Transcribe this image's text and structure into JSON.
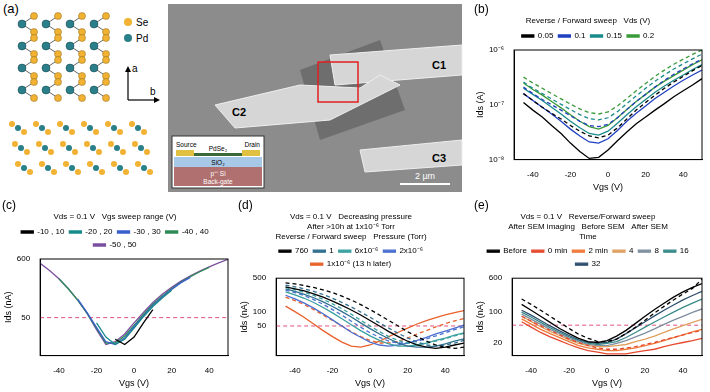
{
  "panel_a": {
    "label": "(a)",
    "atoms": [
      "Se",
      "Pd"
    ],
    "axes": [
      "a",
      "b"
    ],
    "electrodes": [
      "C1",
      "C2",
      "C3"
    ],
    "scale_bar": "2 μm",
    "inset": {
      "source": "Source",
      "drain": "Drain",
      "flake": "PdSe₂",
      "oxide": "SiO₂",
      "substrate": "p⁺⁺ Si",
      "gate": "Back-gate"
    }
  },
  "chart_data": [
    {
      "type": "line",
      "title": "(b)",
      "xlabel": "Vgs (V)",
      "ylabel": "Ids (A)",
      "log": "y",
      "grid": false,
      "legend": "top",
      "annotations": [
        "Reverse / Forward sweep",
        "Vds (V)"
      ],
      "xlim": [
        -50,
        50
      ],
      "xticks": [
        -40,
        -20,
        0,
        20,
        40
      ],
      "ylim": [
        1e-08,
        1e-06
      ],
      "yticks": [
        {
          "value": 1e-08,
          "label": "10⁻⁸"
        },
        {
          "value": 1e-07,
          "label": "10⁻⁷"
        },
        {
          "value": 1e-06,
          "label": "10⁻⁶"
        }
      ],
      "x": [
        -45,
        -40,
        -35,
        -30,
        -25,
        -20,
        -15,
        -10,
        -5,
        0,
        5,
        10,
        15,
        20,
        25,
        30,
        35,
        40,
        45,
        50
      ],
      "series": [
        {
          "name": "0.05",
          "color": "#000000",
          "line_style": "solid",
          "values": [
            1.1e-07,
            8e-08,
            6e-08,
            4.2e-08,
            3e-08,
            2e-08,
            1.4e-08,
            1.05e-08,
            1.1e-08,
            1.5e-08,
            2.2e-08,
            3.2e-08,
            4.5e-08,
            6e-08,
            8e-08,
            1.05e-07,
            1.4e-07,
            1.8e-07,
            2.3e-07,
            3e-07
          ]
        },
        {
          "name": "0.05",
          "color": "#000000",
          "line_style": "dashed",
          "values": [
            1.6e-07,
            1.2e-07,
            9e-08,
            7e-08,
            5.5e-08,
            4.2e-08,
            3.3e-08,
            2.7e-08,
            2.5e-08,
            2.8e-08,
            3.8e-08,
            5.5e-08,
            8e-08,
            1.1e-07,
            1.5e-07,
            2e-07,
            2.6e-07,
            3.3e-07,
            4.2e-07,
            5.2e-07
          ]
        },
        {
          "name": "0.1",
          "color": "#2040c0",
          "line_style": "solid",
          "values": [
            1.6e-07,
            1.2e-07,
            9e-08,
            6.8e-08,
            5e-08,
            3.6e-08,
            2.7e-08,
            2.1e-08,
            2e-08,
            2.4e-08,
            3.4e-08,
            5e-08,
            7e-08,
            9.5e-08,
            1.3e-07,
            1.7e-07,
            2.2e-07,
            2.8e-07,
            3.5e-07,
            4.3e-07
          ]
        },
        {
          "name": "0.1",
          "color": "#2040c0",
          "line_style": "dashed",
          "values": [
            2.1e-07,
            1.6e-07,
            1.25e-07,
            1e-07,
            8e-08,
            6.3e-08,
            5e-08,
            4.2e-08,
            4e-08,
            4.4e-08,
            5.8e-08,
            8.2e-08,
            1.15e-07,
            1.55e-07,
            2.1e-07,
            2.8e-07,
            3.6e-07,
            4.5e-07,
            5.6e-07,
            6.8e-07
          ]
        },
        {
          "name": "0.15",
          "color": "#1a8a8a",
          "line_style": "solid",
          "values": [
            2e-07,
            1.55e-07,
            1.2e-07,
            9e-08,
            6.8e-08,
            5e-08,
            3.8e-08,
            3e-08,
            2.8e-08,
            3.3e-08,
            4.6e-08,
            6.6e-08,
            9.2e-08,
            1.25e-07,
            1.7e-07,
            2.2e-07,
            2.8e-07,
            3.5e-07,
            4.4e-07,
            5.4e-07
          ]
        },
        {
          "name": "0.15",
          "color": "#1a8a8a",
          "line_style": "dashed",
          "values": [
            2.6e-07,
            2e-07,
            1.6e-07,
            1.28e-07,
            1.02e-07,
            8.2e-08,
            6.6e-08,
            5.6e-08,
            5.3e-08,
            5.8e-08,
            7.5e-08,
            1.05e-07,
            1.45e-07,
            2e-07,
            2.7e-07,
            3.5e-07,
            4.5e-07,
            5.6e-07,
            6.9e-07,
            8.4e-07
          ]
        },
        {
          "name": "0.2",
          "color": "#3a9a3a",
          "line_style": "solid",
          "values": [
            2.5e-07,
            1.9e-07,
            1.5e-07,
            1.15e-07,
            8.8e-08,
            6.6e-08,
            5e-08,
            4e-08,
            3.6e-08,
            4.2e-08,
            5.8e-08,
            8.2e-08,
            1.15e-07,
            1.55e-07,
            2.1e-07,
            2.7e-07,
            3.4e-07,
            4.3e-07,
            5.4e-07,
            6.6e-07
          ]
        },
        {
          "name": "0.2",
          "color": "#3a9a3a",
          "line_style": "dashed",
          "values": [
            3.2e-07,
            2.5e-07,
            2e-07,
            1.6e-07,
            1.28e-07,
            1.03e-07,
            8.4e-08,
            7.2e-08,
            6.8e-08,
            7.4e-08,
            9.5e-08,
            1.3e-07,
            1.8e-07,
            2.45e-07,
            3.3e-07,
            4.3e-07,
            5.5e-07,
            6.8e-07,
            8.3e-07,
            1e-06
          ]
        }
      ]
    },
    {
      "type": "line",
      "title": "(c)",
      "xlabel": "Vgs (V)",
      "ylabel": "Ids (nA)",
      "log": "y",
      "grid": false,
      "legend": "top",
      "annotations": [
        "Vds = 0.1 V",
        "Vgs sweep range (V)"
      ],
      "xlim": [
        -50,
        50
      ],
      "xticks": [
        -40,
        -20,
        0,
        20,
        40
      ],
      "ylim": [
        10,
        600
      ],
      "yticks": [
        50,
        600
      ],
      "hline": 50,
      "x": [
        -50,
        -45,
        -40,
        -35,
        -30,
        -25,
        -20,
        -15,
        -10,
        -5,
        0,
        5,
        10,
        15,
        20,
        25,
        30,
        35,
        40,
        45,
        50
      ],
      "series": [
        {
          "name": "-10 , 10",
          "color": "#000000",
          "line_style": "solid",
          "values": [
            null,
            null,
            null,
            null,
            null,
            null,
            null,
            null,
            20,
            16,
            22,
            40,
            70,
            null,
            null,
            null,
            null,
            null,
            null,
            null,
            null
          ]
        },
        {
          "name": "-20 , 20",
          "color": "#1a8a8a",
          "line_style": "solid",
          "values": [
            null,
            null,
            null,
            null,
            null,
            null,
            40,
            22,
            16,
            20,
            32,
            52,
            80,
            115,
            160,
            null,
            null,
            null,
            null,
            null,
            null
          ]
        },
        {
          "name": "-30 , 30",
          "color": "#3a5fcd",
          "line_style": "solid",
          "values": [
            null,
            null,
            null,
            null,
            110,
            62,
            33,
            18,
            16,
            21,
            34,
            54,
            84,
            120,
            165,
            220,
            275,
            null,
            null,
            null,
            null
          ]
        },
        {
          "name": "-40 , 40",
          "color": "#2e8b57",
          "line_style": "solid",
          "values": [
            null,
            null,
            260,
            170,
            105,
            60,
            32,
            17,
            17,
            23,
            36,
            57,
            88,
            125,
            170,
            225,
            285,
            350,
            420,
            null,
            null
          ]
        },
        {
          "name": "-50 , 50",
          "color": "#7b4fa0",
          "line_style": "solid",
          "values": [
            500,
            370,
            260,
            170,
            105,
            60,
            30,
            16,
            18,
            25,
            40,
            62,
            95,
            135,
            180,
            235,
            295,
            360,
            430,
            510,
            590
          ]
        }
      ]
    },
    {
      "type": "line",
      "title": "(d)",
      "xlabel": "Vgs (V)",
      "ylabel": "Ids (nA)",
      "log": "y",
      "grid": false,
      "legend": "top",
      "annotations": [
        "Vds = 0.1 V",
        "Decreasing pressure",
        "After >10h at 1x10⁻⁶ Torr",
        "Reverse / Forward sweep",
        "Pressure (Torr)"
      ],
      "xlim": [
        -50,
        50
      ],
      "xticks": [
        -40,
        -20,
        0,
        20,
        40
      ],
      "ylim": [
        12,
        500
      ],
      "yticks": [
        50,
        100,
        500
      ],
      "hline": 50,
      "x": [
        -45,
        -40,
        -35,
        -30,
        -25,
        -20,
        -15,
        -10,
        -5,
        0,
        5,
        10,
        15,
        20,
        25,
        30,
        35,
        40,
        45,
        50
      ],
      "series": [
        {
          "name": "760",
          "color": "#000000",
          "line_style": "solid",
          "values": [
            330,
            300,
            270,
            235,
            200,
            165,
            135,
            108,
            85,
            65,
            50,
            38,
            30,
            24,
            20,
            18,
            17,
            18,
            20,
            22
          ]
        },
        {
          "name": "760",
          "color": "#000000",
          "line_style": "dashed",
          "values": [
            400,
            380,
            350,
            320,
            285,
            250,
            210,
            175,
            140,
            110,
            85,
            65,
            50,
            38,
            30,
            24,
            20,
            18,
            17,
            18
          ]
        },
        {
          "name": "1",
          "color": "#2f6f8f",
          "line_style": "solid",
          "values": [
            300,
            265,
            230,
            195,
            160,
            128,
            100,
            77,
            58,
            44,
            34,
            27,
            22,
            19,
            18,
            18,
            19,
            21,
            24,
            27
          ]
        },
        {
          "name": "1",
          "color": "#2f6f8f",
          "line_style": "dashed",
          "values": [
            360,
            330,
            300,
            265,
            228,
            190,
            155,
            125,
            98,
            76,
            58,
            45,
            35,
            28,
            23,
            20,
            19,
            20,
            22,
            25
          ]
        },
        {
          "name": "6x10⁻⁶",
          "color": "#3aa0a0",
          "line_style": "solid",
          "values": [
            260,
            225,
            190,
            155,
            122,
            94,
            71,
            53,
            40,
            31,
            25,
            21,
            19,
            19,
            20,
            22,
            25,
            28,
            32,
            36
          ]
        },
        {
          "name": "6x10⁻⁶",
          "color": "#3aa0a0",
          "line_style": "dashed",
          "values": [
            320,
            290,
            255,
            218,
            180,
            145,
            115,
            88,
            66,
            50,
            38,
            30,
            25,
            22,
            21,
            22,
            24,
            27,
            31,
            35
          ]
        },
        {
          "name": "2x10⁻⁶",
          "color": "#4a6fd0",
          "line_style": "solid",
          "values": [
            220,
            185,
            150,
            118,
            90,
            67,
            50,
            37,
            29,
            23,
            20,
            19,
            20,
            22,
            25,
            29,
            34,
            39,
            45,
            52
          ]
        },
        {
          "name": "2x10⁻⁶",
          "color": "#4a6fd0",
          "line_style": "dashed",
          "values": [
            280,
            250,
            215,
            178,
            142,
            110,
            84,
            63,
            47,
            36,
            29,
            24,
            22,
            22,
            24,
            27,
            31,
            36,
            42,
            48
          ]
        },
        {
          "name": "1x10⁻⁶ (13 h later)",
          "color": "#e8602a",
          "line_style": "solid",
          "values": [
            130,
            100,
            75,
            55,
            40,
            30,
            23,
            19,
            18,
            20,
            24,
            30,
            37,
            45,
            55,
            65,
            75,
            85,
            95,
            105
          ]
        },
        {
          "name": "1x10⁻⁶ (13 h later)",
          "color": "#e8602a",
          "line_style": "dashed",
          "values": [
            200,
            170,
            140,
            110,
            85,
            65,
            50,
            38,
            30,
            25,
            22,
            22,
            24,
            28,
            34,
            40,
            48,
            56,
            64,
            72
          ]
        }
      ]
    },
    {
      "type": "line",
      "title": "(e)",
      "xlabel": "Vgs (V)",
      "ylabel": "Ids (nA)",
      "log": "y",
      "grid": false,
      "legend": "top",
      "annotations": [
        "Vds = 0.1 V",
        "Reverse/Forward sweep",
        "After SEM imaging",
        "Before SEM",
        "After SEM",
        "Time"
      ],
      "xlim": [
        -50,
        50
      ],
      "xticks": [
        -40,
        -20,
        0,
        20,
        40
      ],
      "ylim": [
        10,
        600
      ],
      "yticks": [
        20,
        100,
        600
      ],
      "hline": 50,
      "x": [
        -45,
        -40,
        -35,
        -30,
        -25,
        -20,
        -15,
        -10,
        -5,
        0,
        5,
        10,
        15,
        20,
        25,
        30,
        35,
        40,
        45,
        50
      ],
      "series": [
        {
          "name": "Before",
          "color": "#000000",
          "line_style": "solid",
          "values": [
            150,
            110,
            80,
            58,
            42,
            32,
            25,
            21,
            20,
            22,
            28,
            38,
            55,
            80,
            115,
            160,
            220,
            290,
            370,
            450
          ]
        },
        {
          "name": "Before",
          "color": "#000000",
          "line_style": "dashed",
          "values": [
            200,
            150,
            110,
            80,
            58,
            42,
            31,
            25,
            21,
            21,
            24,
            32,
            45,
            65,
            95,
            135,
            190,
            260,
            350,
            570
          ]
        },
        {
          "name": "0 min",
          "color": "#e64a2e",
          "line_style": "solid",
          "values": [
            60,
            45,
            34,
            27,
            22,
            18,
            15,
            13,
            12,
            11,
            11,
            11,
            12,
            13,
            14,
            16,
            18,
            20,
            22,
            25
          ]
        },
        {
          "name": "0 min",
          "color": "#e64a2e",
          "line_style": "dashed",
          "values": [
            80,
            62,
            48,
            38,
            30,
            24,
            20,
            17,
            15,
            14,
            14,
            15,
            16,
            18,
            20,
            23,
            26,
            30,
            34,
            38
          ]
        },
        {
          "name": "2 min",
          "color": "#f07a3a",
          "line_style": "solid",
          "values": [
            70,
            53,
            40,
            32,
            26,
            21,
            17,
            15,
            14,
            13,
            13,
            14,
            15,
            17,
            19,
            22,
            26,
            30,
            35,
            40
          ]
        },
        {
          "name": "4",
          "color": "#e0a060",
          "line_style": "solid",
          "values": [
            80,
            61,
            46,
            36,
            29,
            23,
            19,
            17,
            16,
            16,
            17,
            18,
            21,
            24,
            28,
            34,
            41,
            49,
            58,
            68
          ]
        },
        {
          "name": "8",
          "color": "#7f8fa0",
          "line_style": "solid",
          "values": [
            90,
            69,
            52,
            40,
            32,
            25,
            21,
            18,
            17,
            17,
            19,
            22,
            27,
            33,
            41,
            52,
            65,
            80,
            98,
            118
          ]
        },
        {
          "name": "16",
          "color": "#3a8a8a",
          "line_style": "solid",
          "values": [
            100,
            77,
            58,
            44,
            34,
            27,
            22,
            19,
            18,
            19,
            21,
            26,
            34,
            45,
            59,
            77,
            100,
            128,
            160,
            198
          ]
        },
        {
          "name": "32",
          "color": "#2f4f6f",
          "line_style": "solid",
          "values": [
            110,
            85,
            64,
            48,
            37,
            29,
            23,
            20,
            19,
            20,
            24,
            32,
            44,
            60,
            82,
            110,
            145,
            190,
            240,
            300
          ]
        }
      ]
    }
  ]
}
